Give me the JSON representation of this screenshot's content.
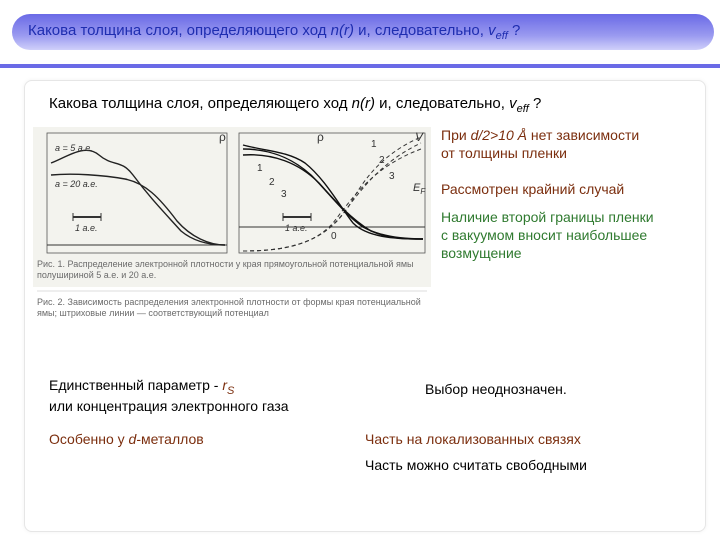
{
  "colors": {
    "title_bg": "#6a6ae6",
    "title_text": "#1e2db0",
    "separator": "#6a6ae6",
    "body_black": "#000000",
    "brown": "#7b2e0e",
    "green": "#2f7a2f",
    "figure_bg": "#f3f3ee",
    "figure_border": "#cfcfca",
    "curve": "#3a3a3a",
    "caption": "#707070"
  },
  "title": {
    "pre1": "Какова толщина слоя, определяющего ход ",
    "nr": "n(r)",
    "mid": " и, следовательно, ",
    "v": "v",
    "eff": "eff",
    "q": " ?"
  },
  "body_title": {
    "pre1": "Какова толщина слоя, определяющего ход ",
    "nr": "n(r)",
    "mid": " и, следовательно, ",
    "v": "v",
    "eff": "eff",
    "q": " ?"
  },
  "figure": {
    "label_5ae": "a = 5 a.e.",
    "label_20ae": "a = 20 a.e.",
    "axis_rho": "ρ",
    "axis_V": "V",
    "tick_1ae_left": "1 a.e.",
    "tick_1ae_right": "1 a.e.",
    "tick_0": "0",
    "label_1": "1",
    "label_2": "2",
    "label_3": "3",
    "label_EF": "E",
    "label_EF_sub": "F",
    "caption1": "Рис. 1. Распределение электронной плотности у края прямоугольной потенциальной ямы полушириной 5 а.е. и 20 а.е.",
    "caption2": "Рис. 2. Зависимость распределения электронной плотности от формы края потенциальной ямы; штриховые линии — соответствующий потенциал"
  },
  "side": {
    "t1_pre": "При ",
    "t1_ital": "d/2>10 Å",
    "t1_post": " нет зависимости",
    "t1_line2": "от толщины пленки",
    "t2": "Рассмотрен крайний случай",
    "t3_l1": "Наличие второй границы пленки",
    "t3_l2": "с вакуумом вносит наибольшее",
    "t3_l3": "возмущение",
    "t4_l1_pre": "Единственный параметр  -  ",
    "t4_rs": "r",
    "t4_rs_sub": "S",
    "t4_l2": "или концентрация электронного  газа",
    "t5": "Выбор неоднозначен.",
    "t6_pre": "Особенно у ",
    "t6_d": "d",
    "t6_post": "-металлов",
    "t7": "Часть на локализованных связях",
    "t8": "Часть можно считать свободными"
  }
}
